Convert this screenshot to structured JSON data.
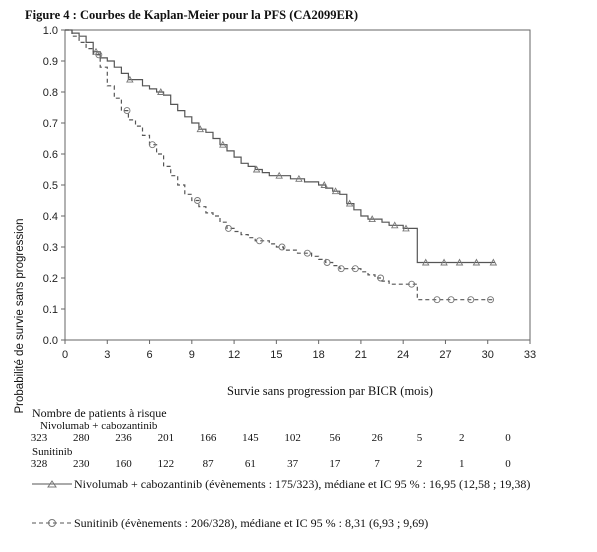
{
  "figure_title": "Figure 4 : Courbes de Kaplan-Meier pour la PFS (CA2099ER)",
  "chart_data": {
    "type": "line",
    "xlabel": "Survie sans progression par BICR (mois)",
    "ylabel": "Probabilité de survie sans progression",
    "xlim": [
      0,
      33
    ],
    "ylim": [
      0,
      1.0
    ],
    "xticks": [
      0,
      3,
      6,
      9,
      12,
      15,
      18,
      21,
      24,
      27,
      30,
      33
    ],
    "yticks": [
      0.0,
      0.1,
      0.2,
      0.3,
      0.4,
      0.5,
      0.6,
      0.7,
      0.8,
      0.9,
      1.0
    ],
    "series": [
      {
        "name": "Nivolumab + cabozantinib",
        "color": "#555555",
        "dash": "solid",
        "x": [
          0,
          0.5,
          1,
          1.5,
          2,
          2.5,
          3,
          3.5,
          4,
          4.5,
          5,
          5.5,
          6,
          6.5,
          7,
          7.5,
          8,
          8.5,
          9,
          9.5,
          10,
          10.5,
          11,
          11.5,
          12,
          12.5,
          13,
          13.5,
          14,
          14.5,
          15,
          15.5,
          16,
          16.5,
          17,
          17.5,
          18,
          18.5,
          19,
          19.5,
          20,
          20.5,
          21,
          21.5,
          22,
          22.5,
          23,
          23.5,
          24,
          24.5,
          25,
          30.5
        ],
        "y": [
          1.0,
          0.99,
          0.98,
          0.96,
          0.93,
          0.91,
          0.9,
          0.88,
          0.86,
          0.84,
          0.84,
          0.82,
          0.81,
          0.8,
          0.79,
          0.76,
          0.74,
          0.72,
          0.7,
          0.68,
          0.67,
          0.65,
          0.63,
          0.61,
          0.59,
          0.57,
          0.56,
          0.55,
          0.54,
          0.53,
          0.53,
          0.53,
          0.52,
          0.52,
          0.51,
          0.51,
          0.5,
          0.49,
          0.48,
          0.47,
          0.44,
          0.42,
          0.4,
          0.39,
          0.39,
          0.38,
          0.37,
          0.37,
          0.36,
          0.36,
          0.25,
          0.25
        ],
        "censor_x": [
          2.2,
          4.6,
          6.8,
          9.6,
          11.2,
          13.6,
          15.2,
          16.6,
          18.4,
          19.2,
          20.2,
          21.8,
          23.4,
          24.2,
          25.6,
          26.9,
          28.0,
          29.2,
          30.4
        ]
      },
      {
        "name": "Sunitinib",
        "color": "#555555",
        "dash": "dashed",
        "x": [
          0,
          0.5,
          1,
          1.5,
          2,
          2.5,
          3,
          3.5,
          4,
          4.5,
          5,
          5.5,
          6,
          6.5,
          7,
          7.5,
          8,
          8.5,
          9,
          9.5,
          10,
          10.5,
          11,
          11.5,
          12,
          12.5,
          13,
          13.5,
          14,
          14.5,
          15,
          15.5,
          16,
          16.5,
          17,
          17.5,
          18,
          18.5,
          19,
          19.5,
          20,
          20.5,
          21,
          21.5,
          22,
          22.5,
          23,
          23.5,
          24,
          24.5,
          25,
          30.5
        ],
        "y": [
          1.0,
          0.98,
          0.96,
          0.94,
          0.92,
          0.88,
          0.82,
          0.78,
          0.74,
          0.71,
          0.69,
          0.66,
          0.63,
          0.6,
          0.56,
          0.53,
          0.5,
          0.47,
          0.45,
          0.43,
          0.41,
          0.4,
          0.38,
          0.36,
          0.35,
          0.34,
          0.33,
          0.32,
          0.32,
          0.31,
          0.3,
          0.29,
          0.29,
          0.28,
          0.28,
          0.27,
          0.26,
          0.25,
          0.24,
          0.23,
          0.23,
          0.23,
          0.22,
          0.21,
          0.2,
          0.19,
          0.18,
          0.18,
          0.18,
          0.18,
          0.13,
          0.13
        ],
        "censor_x": [
          2.4,
          4.4,
          6.2,
          9.4,
          11.6,
          13.8,
          15.4,
          17.2,
          18.6,
          19.6,
          20.6,
          22.4,
          24.6,
          26.4,
          27.4,
          28.8,
          30.2
        ]
      }
    ]
  },
  "risk_table": {
    "title": "Nombre de patients à risque",
    "groups": [
      {
        "name": "Nivolumab + cabozantinib",
        "counts": [
          "323",
          "280",
          "236",
          "201",
          "166",
          "145",
          "102",
          "56",
          "26",
          "5",
          "2",
          "0"
        ]
      },
      {
        "name": "Sunitinib",
        "counts": [
          "328",
          "230",
          "160",
          "122",
          "87",
          "61",
          "37",
          "17",
          "7",
          "2",
          "1",
          "0"
        ]
      }
    ]
  },
  "legend": [
    {
      "text": "Nivolumab + cabozantinib (évènements : 175/323), médiane et IC 95 % : 16,95 (12,58 ; 19,38)"
    },
    {
      "text": "Sunitinib (évènements : 206/328), médiane et IC 95 % : 8,31 (6,93 ; 9,69)"
    }
  ]
}
